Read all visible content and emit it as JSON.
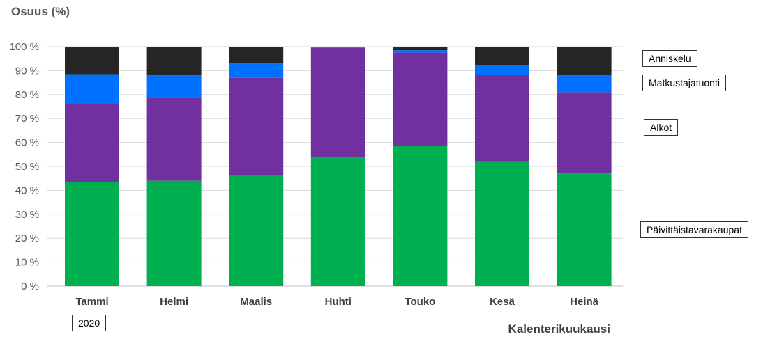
{
  "chart_data": {
    "type": "bar",
    "stacked": true,
    "ylabel": "Osuus (%)",
    "xlabel": "Kalenterikuukausi",
    "ylim": [
      0,
      100
    ],
    "yticks": [
      "0 %",
      "10 %",
      "20 %",
      "30 %",
      "40 %",
      "50 %",
      "60 %",
      "70 %",
      "80 %",
      "90 %",
      "100 %"
    ],
    "grid": true,
    "categories": [
      "Tammi",
      "Helmi",
      "Maalis",
      "Huhti",
      "Touko",
      "Kesä",
      "Heinä"
    ],
    "year_label": "2020",
    "series": [
      {
        "name": "Päivittäistavarakaupat",
        "color": "#00b050",
        "values": [
          43.5,
          44,
          46.5,
          54,
          58.5,
          52.2,
          47
        ]
      },
      {
        "name": "Alkot",
        "color": "#7030a0",
        "values": [
          32.5,
          34.5,
          40.5,
          45.5,
          39,
          36,
          34
        ]
      },
      {
        "name": "Matkustajatuonti",
        "color": "#0070ff",
        "values": [
          12.5,
          9.5,
          6,
          0.5,
          1,
          4,
          7
        ]
      },
      {
        "name": "Anniskelu",
        "color": "#262626",
        "values": [
          11.5,
          12,
          7,
          0,
          1.5,
          7.8,
          12
        ]
      }
    ]
  }
}
